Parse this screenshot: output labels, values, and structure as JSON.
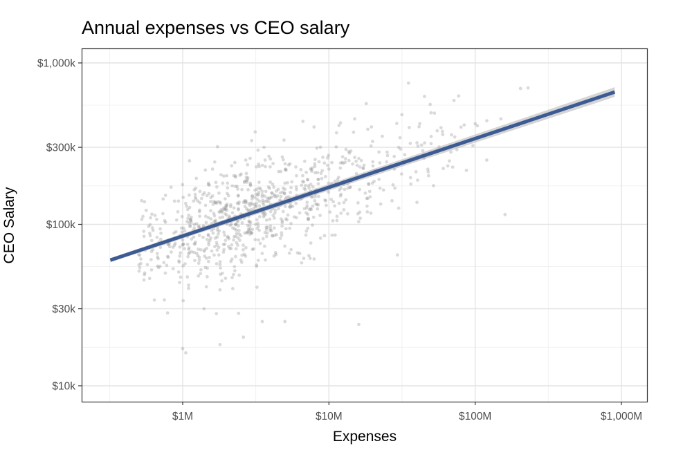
{
  "chart_data": {
    "type": "scatter",
    "title": "Annual expenses vs CEO salary",
    "xlabel": "Expenses",
    "ylabel": "CEO Salary",
    "x_scale": "log10",
    "y_scale": "log10",
    "xlim": [
      200000,
      1500000000
    ],
    "ylim": [
      8500,
      1400000
    ],
    "x_ticks": [
      {
        "value": 1000000,
        "label": "$1M"
      },
      {
        "value": 10000000,
        "label": "$10M"
      },
      {
        "value": 100000000,
        "label": "$100M"
      },
      {
        "value": 1000000000,
        "label": "$1,000M"
      }
    ],
    "y_ticks": [
      {
        "value": 10000,
        "label": "$10k"
      },
      {
        "value": 30000,
        "label": "$30k"
      },
      {
        "value": 100000,
        "label": "$100k"
      },
      {
        "value": 300000,
        "label": "$300k"
      },
      {
        "value": 1000000,
        "label": "$1,000k"
      }
    ],
    "grid": true,
    "series": [
      {
        "kind": "points",
        "color": "#8c8c8c",
        "opacity": 0.32,
        "x": [
          1000000,
          1200000,
          1500000,
          1800000,
          2000000,
          2300000,
          2700000,
          3000000,
          3500000,
          4200000,
          5000000,
          6000000,
          7000000,
          8500000,
          10000000,
          12000000,
          15000000,
          20000000,
          25000000,
          30000000,
          40000000,
          50000000,
          60000000,
          80000000,
          100000000,
          150000000,
          230000000,
          35000000,
          45000000,
          18000000,
          15000000,
          2500000,
          2200000,
          2600000,
          1800000,
          1400000,
          1700000,
          1000000,
          1050000,
          3500000,
          5000000,
          16000000,
          700000,
          800000,
          550000,
          500000,
          600000,
          900000,
          1300000,
          1600000,
          2100000,
          2400000,
          2800000,
          3200000,
          3800000,
          4500000,
          5500000,
          6500000,
          7500000,
          9000000,
          11000000,
          13000000,
          17000000,
          22000000,
          28000000,
          33000000,
          38000000,
          43000000,
          48000000,
          55000000,
          65000000,
          75000000,
          120000000,
          160000000,
          2000000,
          2500000,
          3000000,
          1500000,
          1200000,
          4000000,
          6000000,
          8000000,
          12000000,
          1100000,
          1300000,
          1900000,
          2200000,
          3300000,
          4800000,
          6800000,
          9500000,
          14000000,
          19000000,
          27000000,
          3600000,
          2900000,
          1600000,
          2700000
        ],
        "y": [
          80000,
          95000,
          110000,
          120000,
          130000,
          100000,
          140000,
          150000,
          160000,
          170000,
          180000,
          200000,
          210000,
          190000,
          220000,
          240000,
          260000,
          230000,
          280000,
          300000,
          320000,
          350000,
          360000,
          400000,
          420000,
          450000,
          700000,
          750000,
          620000,
          560000,
          450000,
          60000,
          40000,
          20000,
          18000,
          30000,
          28000,
          17000,
          16000,
          25000,
          25000,
          24000,
          55000,
          75000,
          50000,
          65000,
          85000,
          90000,
          120000,
          150000,
          110000,
          125000,
          90000,
          135000,
          145000,
          165000,
          130000,
          175000,
          160000,
          215000,
          185000,
          255000,
          200000,
          190000,
          220000,
          270000,
          250000,
          310000,
          200000,
          380000,
          230000,
          290000,
          250000,
          115000,
          200000,
          85000,
          70000,
          180000,
          100000,
          120000,
          110000,
          140000,
          150000,
          70000,
          60000,
          75000,
          95000,
          80000,
          105000,
          125000,
          140000,
          170000,
          160000,
          140000,
          300000,
          180000,
          220000,
          250000
        ]
      },
      {
        "kind": "line",
        "name": "",
        "color": "#3c5a93",
        "x": [
          320000,
          900000000
        ],
        "y": [
          60000,
          660000
        ]
      }
    ]
  }
}
